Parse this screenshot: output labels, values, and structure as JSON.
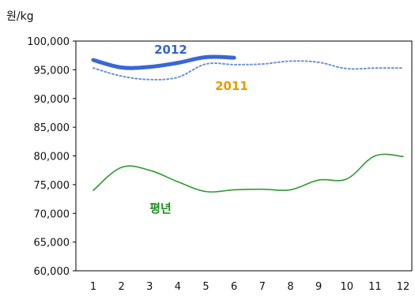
{
  "chart_data": {
    "type": "line",
    "unit_label": "원/kg",
    "x": [
      1,
      2,
      3,
      4,
      5,
      6,
      7,
      8,
      9,
      10,
      11,
      12
    ],
    "ylim": [
      60000,
      100000
    ],
    "yticks": [
      "60,000",
      "65,000",
      "70,000",
      "75,000",
      "80,000",
      "85,000",
      "90,000",
      "95,000",
      "100,000"
    ],
    "xticks": [
      "1",
      "2",
      "3",
      "4",
      "5",
      "6",
      "7",
      "8",
      "9",
      "10",
      "11",
      "12"
    ],
    "grid": false,
    "series": [
      {
        "name": "2012",
        "color": "#3a66d6",
        "style": "solid-thick",
        "values": [
          96700,
          95400,
          95500,
          96200,
          97200,
          97100,
          null,
          null,
          null,
          null,
          null,
          null
        ]
      },
      {
        "name": "2011",
        "color": "#6f8fd6",
        "style": "dotted",
        "values": [
          95300,
          93900,
          93300,
          93700,
          96000,
          95900,
          96000,
          96500,
          96300,
          95200,
          95300,
          95300
        ]
      },
      {
        "name": "평년",
        "color": "#2f9a2f",
        "style": "solid",
        "values": [
          74000,
          78000,
          77500,
          75500,
          73800,
          74100,
          74200,
          74100,
          75800,
          76000,
          80000,
          79900
        ]
      }
    ],
    "series_label_colors": {
      "2012": "#3366cc",
      "2011": "#e79a00",
      "평년": "#1e8b1e"
    }
  }
}
